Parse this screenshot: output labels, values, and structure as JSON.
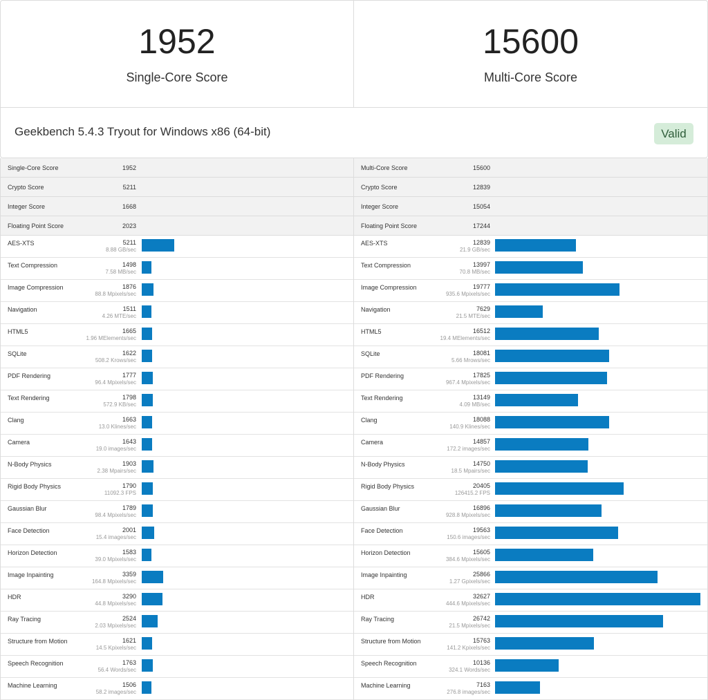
{
  "header": {
    "single_core": {
      "value": "1952",
      "label": "Single-Core Score"
    },
    "multi_core": {
      "value": "15600",
      "label": "Multi-Core Score"
    },
    "title": "Geekbench 5.4.3 Tryout for Windows x86 (64-bit)",
    "status": "Valid"
  },
  "colors": {
    "bar": "#0a7cc1",
    "valid_bg": "#d5ecd9"
  },
  "single": {
    "summary": [
      {
        "name": "Single-Core Score",
        "value": "1952"
      },
      {
        "name": "Crypto Score",
        "value": "5211"
      },
      {
        "name": "Integer Score",
        "value": "1668"
      },
      {
        "name": "Floating Point Score",
        "value": "2023"
      }
    ],
    "benchmarks": [
      {
        "name": "AES-XTS",
        "score": 5211,
        "rate": "8.88 GB/sec"
      },
      {
        "name": "Text Compression",
        "score": 1498,
        "rate": "7.58 MB/sec"
      },
      {
        "name": "Image Compression",
        "score": 1876,
        "rate": "88.8 Mpixels/sec"
      },
      {
        "name": "Navigation",
        "score": 1511,
        "rate": "4.26 MTE/sec"
      },
      {
        "name": "HTML5",
        "score": 1665,
        "rate": "1.96 MElements/sec"
      },
      {
        "name": "SQLite",
        "score": 1622,
        "rate": "508.2 Krows/sec"
      },
      {
        "name": "PDF Rendering",
        "score": 1777,
        "rate": "96.4 Mpixels/sec"
      },
      {
        "name": "Text Rendering",
        "score": 1798,
        "rate": "572.9 KB/sec"
      },
      {
        "name": "Clang",
        "score": 1663,
        "rate": "13.0 Klines/sec"
      },
      {
        "name": "Camera",
        "score": 1643,
        "rate": "19.0 images/sec"
      },
      {
        "name": "N-Body Physics",
        "score": 1903,
        "rate": "2.38 Mpairs/sec"
      },
      {
        "name": "Rigid Body Physics",
        "score": 1790,
        "rate": "11092.3 FPS"
      },
      {
        "name": "Gaussian Blur",
        "score": 1789,
        "rate": "98.4 Mpixels/sec"
      },
      {
        "name": "Face Detection",
        "score": 2001,
        "rate": "15.4 images/sec"
      },
      {
        "name": "Horizon Detection",
        "score": 1583,
        "rate": "39.0 Mpixels/sec"
      },
      {
        "name": "Image Inpainting",
        "score": 3359,
        "rate": "164.8 Mpixels/sec"
      },
      {
        "name": "HDR",
        "score": 3290,
        "rate": "44.8 Mpixels/sec"
      },
      {
        "name": "Ray Tracing",
        "score": 2524,
        "rate": "2.03 Mpixels/sec"
      },
      {
        "name": "Structure from Motion",
        "score": 1621,
        "rate": "14.5 Kpixels/sec"
      },
      {
        "name": "Speech Recognition",
        "score": 1763,
        "rate": "56.4 Words/sec"
      },
      {
        "name": "Machine Learning",
        "score": 1506,
        "rate": "58.2 images/sec"
      }
    ]
  },
  "multi": {
    "summary": [
      {
        "name": "Multi-Core Score",
        "value": "15600"
      },
      {
        "name": "Crypto Score",
        "value": "12839"
      },
      {
        "name": "Integer Score",
        "value": "15054"
      },
      {
        "name": "Floating Point Score",
        "value": "17244"
      }
    ],
    "benchmarks": [
      {
        "name": "AES-XTS",
        "score": 12839,
        "rate": "21.9 GB/sec"
      },
      {
        "name": "Text Compression",
        "score": 13997,
        "rate": "70.8 MB/sec"
      },
      {
        "name": "Image Compression",
        "score": 19777,
        "rate": "935.6 Mpixels/sec"
      },
      {
        "name": "Navigation",
        "score": 7629,
        "rate": "21.5 MTE/sec"
      },
      {
        "name": "HTML5",
        "score": 16512,
        "rate": "19.4 MElements/sec"
      },
      {
        "name": "SQLite",
        "score": 18081,
        "rate": "5.66 Mrows/sec"
      },
      {
        "name": "PDF Rendering",
        "score": 17825,
        "rate": "967.4 Mpixels/sec"
      },
      {
        "name": "Text Rendering",
        "score": 13149,
        "rate": "4.09 MB/sec"
      },
      {
        "name": "Clang",
        "score": 18088,
        "rate": "140.9 Klines/sec"
      },
      {
        "name": "Camera",
        "score": 14857,
        "rate": "172.2 images/sec"
      },
      {
        "name": "N-Body Physics",
        "score": 14750,
        "rate": "18.5 Mpairs/sec"
      },
      {
        "name": "Rigid Body Physics",
        "score": 20405,
        "rate": "126415.2 FPS"
      },
      {
        "name": "Gaussian Blur",
        "score": 16896,
        "rate": "928.8 Mpixels/sec"
      },
      {
        "name": "Face Detection",
        "score": 19563,
        "rate": "150.6 images/sec"
      },
      {
        "name": "Horizon Detection",
        "score": 15605,
        "rate": "384.6 Mpixels/sec"
      },
      {
        "name": "Image Inpainting",
        "score": 25866,
        "rate": "1.27 Gpixels/sec"
      },
      {
        "name": "HDR",
        "score": 32627,
        "rate": "444.6 Mpixels/sec"
      },
      {
        "name": "Ray Tracing",
        "score": 26742,
        "rate": "21.5 Mpixels/sec"
      },
      {
        "name": "Structure from Motion",
        "score": 15763,
        "rate": "141.2 Kpixels/sec"
      },
      {
        "name": "Speech Recognition",
        "score": 10136,
        "rate": "324.1 Words/sec"
      },
      {
        "name": "Machine Learning",
        "score": 7163,
        "rate": "276.8 images/sec"
      }
    ]
  }
}
